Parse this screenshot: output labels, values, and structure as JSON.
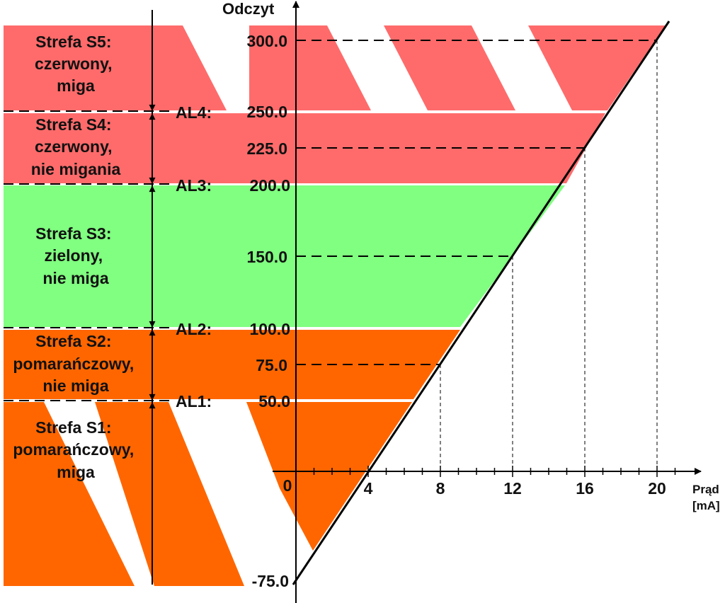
{
  "axes": {
    "y_title": "Odczyt",
    "x_title": "Prąd",
    "x_unit": "[mA]",
    "y_ticks": [
      "300.0",
      "250.0",
      "225.0",
      "200.0",
      "150.0",
      "100.0",
      "75.0",
      "50.0",
      "-75.0"
    ],
    "x_ticks": [
      "0",
      "4",
      "8",
      "12",
      "16",
      "20"
    ]
  },
  "alarms": [
    "AL4:",
    "AL3:",
    "AL2:",
    "AL1:"
  ],
  "zones": [
    {
      "lines": [
        "Strefa S5:",
        "czerwony,",
        "miga"
      ],
      "color": "#ff6b6b"
    },
    {
      "lines": [
        "Strefa S4:",
        "czerwony,",
        "nie migania"
      ],
      "color": "#ff6b6b"
    },
    {
      "lines": [
        "Strefa S3:",
        "zielony,",
        "nie miga"
      ],
      "color": "#80ff80"
    },
    {
      "lines": [
        "Strefa S2:",
        "pomarańczowy,",
        "nie miga"
      ],
      "color": "#ff6600"
    },
    {
      "lines": [
        "Strefa S1:",
        "pomarańczowy,",
        "miga"
      ],
      "color": "#ff6600"
    }
  ],
  "chart_data": {
    "type": "line",
    "xlabel": "Prąd [mA]",
    "ylabel": "Odczyt",
    "x": [
      0,
      4,
      8,
      12,
      16,
      20
    ],
    "y": [
      -75,
      0,
      75,
      150,
      225,
      300
    ],
    "thresholds": [
      {
        "name": "AL1",
        "value": 50
      },
      {
        "name": "AL2",
        "value": 100
      },
      {
        "name": "AL3",
        "value": 200
      },
      {
        "name": "AL4",
        "value": 250
      }
    ],
    "zones": [
      {
        "name": "S1",
        "from": -75,
        "to": 50,
        "color": "pomarańczowy",
        "blink": true
      },
      {
        "name": "S2",
        "from": 50,
        "to": 100,
        "color": "pomarańczowy",
        "blink": false
      },
      {
        "name": "S3",
        "from": 100,
        "to": 200,
        "color": "zielony",
        "blink": false
      },
      {
        "name": "S4",
        "from": 200,
        "to": 250,
        "color": "czerwony",
        "blink": false
      },
      {
        "name": "S5",
        "from": 250,
        "to": 300,
        "color": "czerwony",
        "blink": true
      }
    ]
  }
}
